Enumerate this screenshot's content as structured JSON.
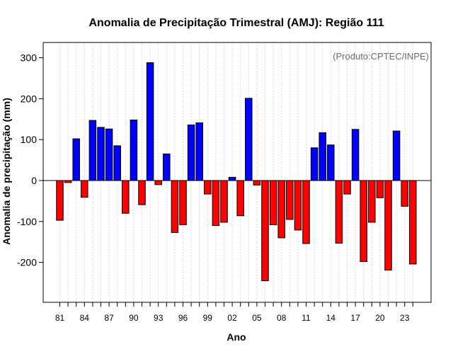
{
  "chart_data": {
    "type": "bar",
    "title": "Anomalia de Precipitação Trimestral (AMJ): Região 111",
    "xlabel": "Ano",
    "ylabel": "Anomalia de precipitação (mm)",
    "credit": "(Produto:CPTEC/INPE)",
    "ylim": [
      -300,
      340
    ],
    "yticks": [
      -200,
      -100,
      0,
      100,
      200,
      300
    ],
    "grid": "vertical dotted",
    "positive_color": "#0000ff",
    "negative_color": "#ff0000",
    "categories": [
      "1981",
      "1982",
      "1983",
      "1984",
      "1985",
      "1986",
      "1987",
      "1988",
      "1989",
      "1990",
      "1991",
      "1992",
      "1993",
      "1994",
      "1995",
      "1996",
      "1997",
      "1998",
      "1999",
      "2000",
      "2001",
      "2002",
      "2003",
      "2004",
      "2005",
      "2006",
      "2007",
      "2008",
      "2009",
      "2010",
      "2011",
      "2012",
      "2013",
      "2014",
      "2015",
      "2016",
      "2017",
      "2018",
      "2019",
      "2020",
      "2021",
      "2022",
      "2023",
      "2024"
    ],
    "tick_labels": [
      "81",
      "",
      "",
      "84",
      "",
      "",
      "87",
      "",
      "",
      "90",
      "",
      "",
      "93",
      "",
      "",
      "96",
      "",
      "",
      "99",
      "",
      "",
      "02",
      "",
      "",
      "05",
      "",
      "",
      "08",
      "",
      "",
      "11",
      "",
      "",
      "14",
      "",
      "",
      "17",
      "",
      "",
      "20",
      "",
      "",
      "23",
      ""
    ],
    "values": [
      -97,
      -5,
      102,
      -41,
      147,
      130,
      126,
      85,
      -80,
      148,
      -59,
      288,
      -10,
      65,
      -127,
      -108,
      136,
      141,
      -33,
      -110,
      -102,
      8,
      -86,
      201,
      -11,
      -245,
      -108,
      -140,
      -95,
      -121,
      -154,
      80,
      117,
      87,
      -153,
      -33,
      125,
      -198,
      -102,
      -42,
      -219,
      121,
      -63,
      -204
    ]
  }
}
